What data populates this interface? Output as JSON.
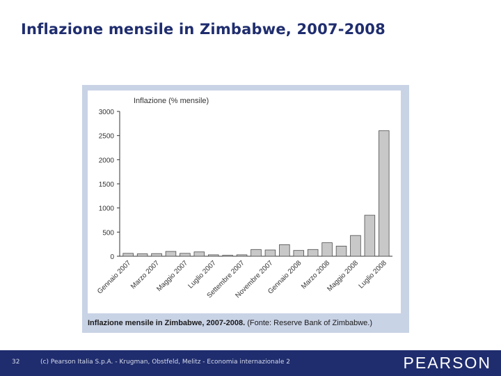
{
  "slide": {
    "title": "Inflazione mensile in Zimbabwe, 2007-2008",
    "page_number": "32",
    "copyright": "(c) Pearson Italia S.p.A. - Krugman, Obstfeld, Melitz - Economia internazionale 2",
    "logo_text": "PEARSON"
  },
  "figure": {
    "caption_bold": "Inflazione mensile in Zimbabwe, 2007-2008.",
    "caption_source": " (Fonte: Reserve Bank of Zimbabwe.)"
  },
  "colors": {
    "title": "#1f2d6e",
    "footer": "#1f2d6e",
    "bar_fill": "#c8c8c8",
    "bar_stroke": "#4d4d4d"
  },
  "chart_data": {
    "type": "bar",
    "ylabel": "Inflazione (% mensile)",
    "ylim": [
      0,
      3000
    ],
    "yticks": [
      0,
      500,
      1000,
      1500,
      2000,
      2500,
      3000
    ],
    "grid": false,
    "categories": [
      "Gennaio 2007",
      "",
      "Marzo 2007",
      "",
      "Maggio 2007",
      "",
      "Luglio 2007",
      "",
      "Settembre 2007",
      "",
      "Novembre 2007",
      "",
      "Gennaio 2008",
      "",
      "Marzo 2008",
      "",
      "Maggio 2008",
      "",
      "Luglio 2008"
    ],
    "values": [
      60,
      50,
      55,
      100,
      60,
      90,
      30,
      20,
      30,
      140,
      130,
      240,
      120,
      140,
      280,
      210,
      430,
      850,
      2600
    ]
  }
}
